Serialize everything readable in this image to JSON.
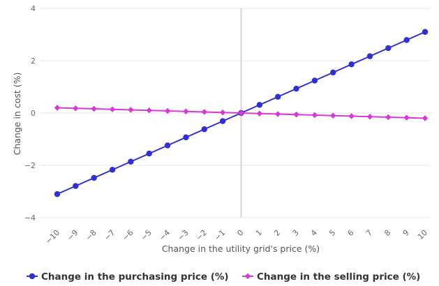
{
  "chart_data": {
    "type": "line",
    "xlabel": "Change in the utility grid's price (%)",
    "ylabel": "Change in cost (%)",
    "xlim": [
      -10,
      10
    ],
    "ylim": [
      -4,
      4
    ],
    "x_ticks": [
      "−10",
      "−9",
      "−8",
      "−7",
      "−6",
      "−5",
      "−4",
      "−3",
      "−2",
      "−1",
      "0",
      "1",
      "2",
      "3",
      "4",
      "5",
      "6",
      "7",
      "8",
      "9",
      "10"
    ],
    "y_ticks": [
      "4",
      "2",
      "0",
      "−2",
      "−4"
    ],
    "y_tick_values": [
      4,
      2,
      0,
      -2,
      -4
    ],
    "grid": true,
    "legend_position": "bottom",
    "x": [
      -10,
      -9,
      -8,
      -7,
      -6,
      -5,
      -4,
      -3,
      -2,
      -1,
      0,
      1,
      2,
      3,
      4,
      5,
      6,
      7,
      8,
      9,
      10
    ],
    "series": [
      {
        "name": "Change in the purchasing price (%)",
        "color": "#2f2fd6",
        "marker": "circle",
        "values": [
          -3.1,
          -2.79,
          -2.48,
          -2.17,
          -1.86,
          -1.55,
          -1.24,
          -0.93,
          -0.62,
          -0.31,
          0,
          0.31,
          0.62,
          0.93,
          1.24,
          1.55,
          1.86,
          2.17,
          2.48,
          2.79,
          3.1
        ]
      },
      {
        "name": "Change in the selling price (%)",
        "color": "#d63ad6",
        "marker": "diamond",
        "values": [
          0.2,
          0.18,
          0.16,
          0.14,
          0.12,
          0.1,
          0.08,
          0.06,
          0.04,
          0.02,
          0,
          -0.02,
          -0.04,
          -0.06,
          -0.08,
          -0.1,
          -0.12,
          -0.14,
          -0.16,
          -0.18,
          -0.2
        ]
      }
    ]
  }
}
